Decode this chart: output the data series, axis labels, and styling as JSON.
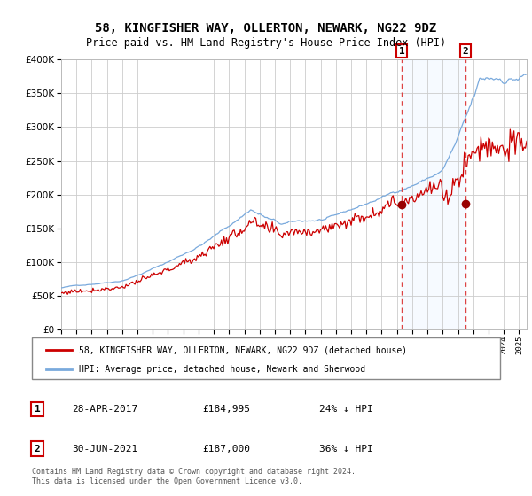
{
  "title": "58, KINGFISHER WAY, OLLERTON, NEWARK, NG22 9DZ",
  "subtitle": "Price paid vs. HM Land Registry's House Price Index (HPI)",
  "legend_line1": "58, KINGFISHER WAY, OLLERTON, NEWARK, NG22 9DZ (detached house)",
  "legend_line2": "HPI: Average price, detached house, Newark and Sherwood",
  "marker1_date": "28-APR-2017",
  "marker1_price": 184995,
  "marker1_label": "24%  HPI",
  "marker2_date": "30-JUN-2021",
  "marker2_price": 187000,
  "marker2_label": "36%  HPI",
  "footer": "Contains HM Land Registry data © Crown copyright and database right 2024.\nThis data is licensed under the Open Government Licence v3.0.",
  "hpi_color": "#7aaadd",
  "price_color": "#cc0000",
  "marker_color": "#990000",
  "vline_color": "#dd4444",
  "shade_color": "#ddeeff",
  "ylim": [
    0,
    400000
  ],
  "yticks": [
    0,
    50000,
    100000,
    150000,
    200000,
    250000,
    300000,
    350000,
    400000
  ],
  "xlim_start": 1995.0,
  "xlim_end": 2025.5
}
